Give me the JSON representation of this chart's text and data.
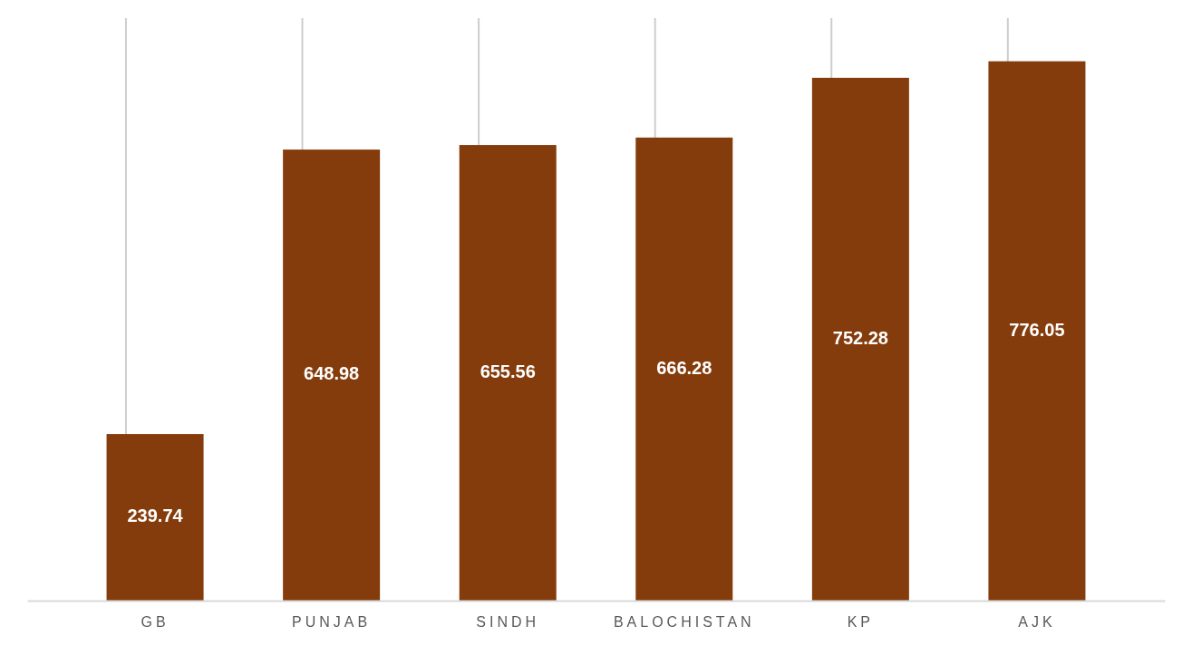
{
  "chart_data": {
    "type": "bar",
    "categories": [
      "GB",
      "PUNJAB",
      "SINDH",
      "BALOCHISTAN",
      "KP",
      "AJK"
    ],
    "values": [
      239.74,
      648.98,
      655.56,
      666.28,
      752.28,
      776.05
    ],
    "color": "#843c0c",
    "data_labels": true,
    "grid": "x"
  }
}
